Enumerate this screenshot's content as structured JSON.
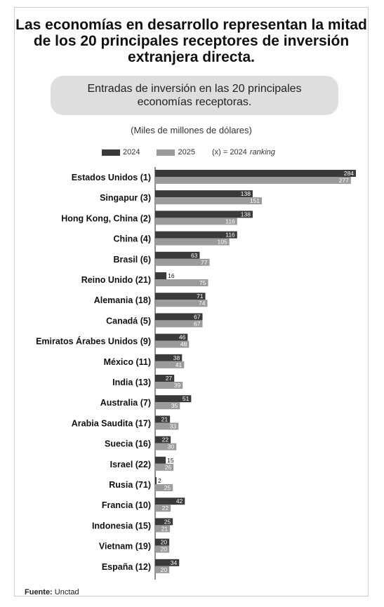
{
  "title": "Las economías en desarrollo representan la mitad de los 20 principales receptores de inversión extranjera directa.",
  "subtitle": "Entradas de inversión en las 20 principales economías receptoras.",
  "units": "(Miles de millones de dólares)",
  "legend": {
    "series_2024": "2024",
    "series_2025": "2025",
    "note_prefix": "(x) = 2024",
    "note_emph": "ranking"
  },
  "source": {
    "label": "Fuente:",
    "value": "Unctad"
  },
  "colors": {
    "series_2024": "#3a3a3a",
    "series_2025": "#9b9b9b",
    "subtitle_bg": "#dedede"
  },
  "chart_data": {
    "type": "bar",
    "orientation": "horizontal",
    "categories": [
      "Estados Unidos (1)",
      "Singapur (3)",
      "Hong Kong, China (2)",
      "China (4)",
      "Brasil (6)",
      "Reino Unido (21)",
      "Alemania (18)",
      "Canadá (5)",
      "Emiratos Árabes Unidos (9)",
      "México (11)",
      "India (13)",
      "Australia (7)",
      "Arabia Saudita (17)",
      "Suecia (16)",
      "Israel (22)",
      "Rusia (71)",
      "Francia (10)",
      "Indonesia (15)",
      "Vietnam (19)",
      "España (12)"
    ],
    "series": [
      {
        "name": "2024",
        "values": [
          284,
          138,
          138,
          116,
          63,
          16,
          71,
          67,
          46,
          38,
          27,
          51,
          21,
          22,
          15,
          2,
          42,
          25,
          20,
          34
        ]
      },
      {
        "name": "2025",
        "values": [
          277,
          151,
          116,
          105,
          77,
          75,
          74,
          67,
          48,
          41,
          39,
          35,
          33,
          30,
          26,
          25,
          22,
          21,
          20,
          20
        ]
      }
    ],
    "xlim": [
      0,
      290
    ],
    "grid": false,
    "legend_position": "top"
  }
}
